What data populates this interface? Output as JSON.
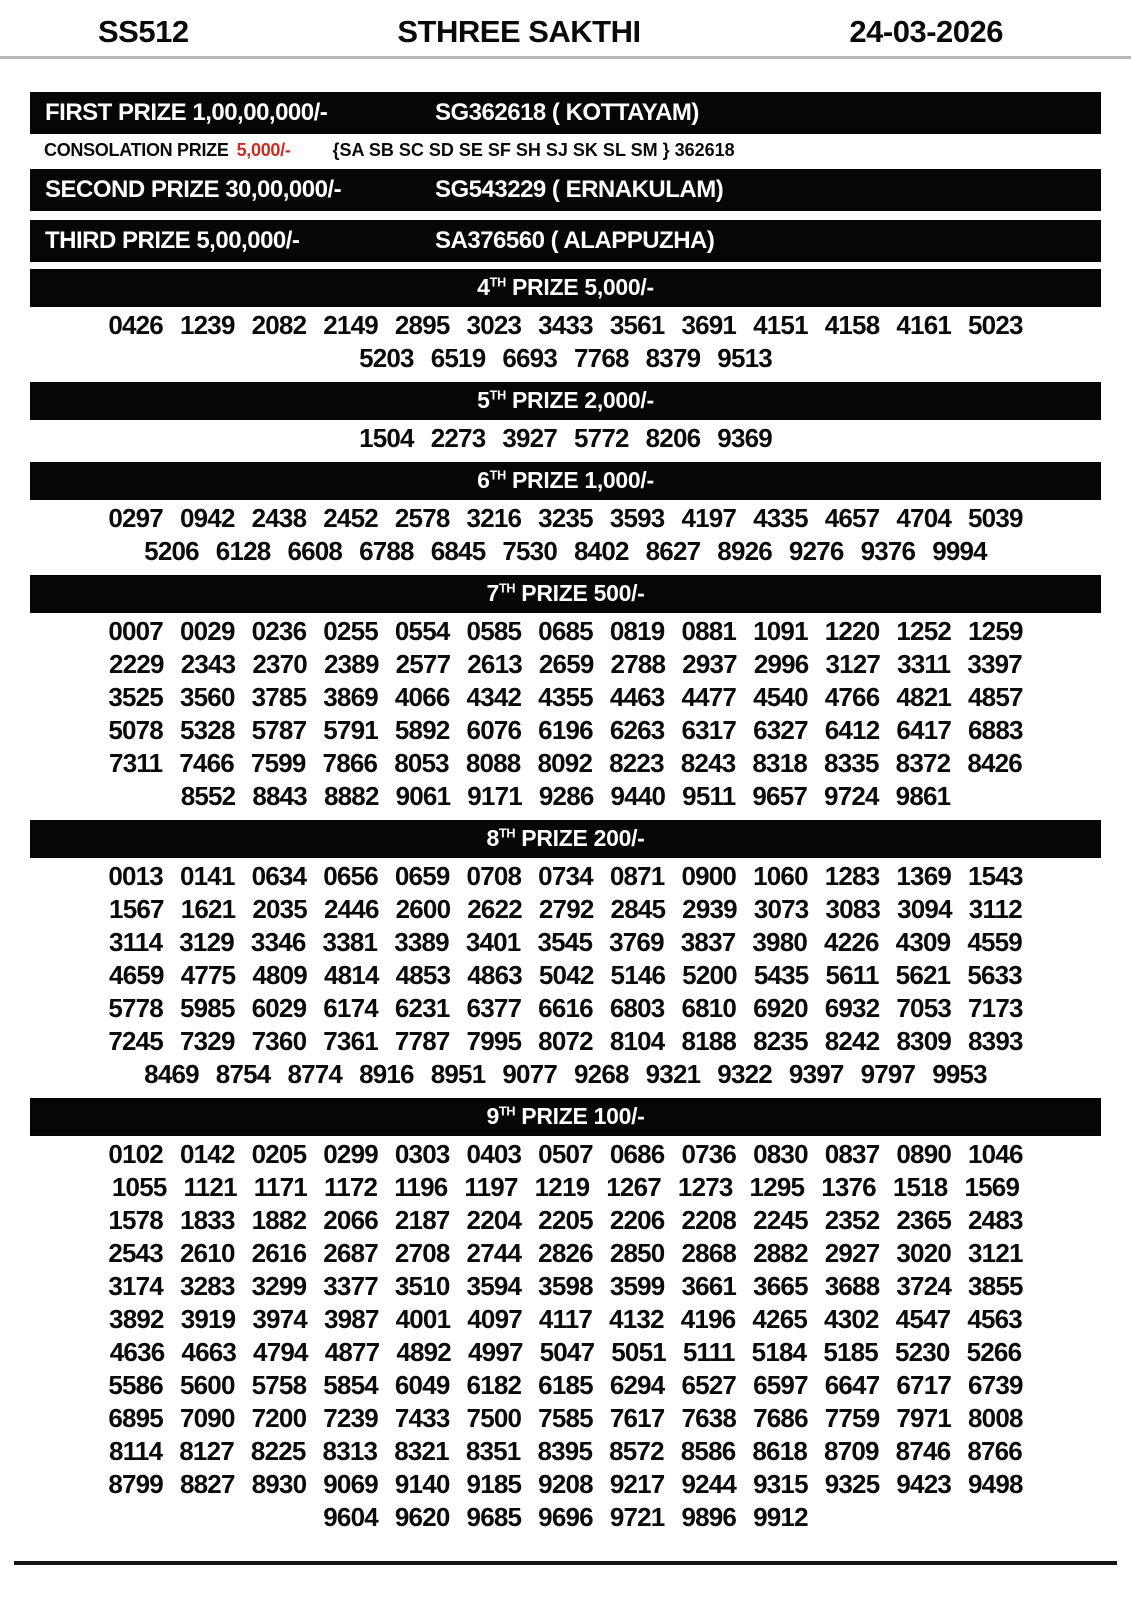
{
  "header": {
    "draw_code": "SS512",
    "lottery_name": "STHREE SAKTHI",
    "draw_date": "24-03-2026"
  },
  "top_prizes": {
    "first": {
      "label": "FIRST PRIZE 1,00,00,000/-",
      "winner": "SG362618 ( KOTTAYAM)"
    },
    "consolation": {
      "label": "CONSOLATION PRIZE",
      "amount": "5,000/-",
      "series": "{SA SB SC SD SE SF SH SJ SK SL SM } 362618"
    },
    "second": {
      "label": "SECOND PRIZE 30,00,000/-",
      "winner": "SG543229 ( ERNAKULAM)"
    },
    "third": {
      "label": "THIRD PRIZE 5,00,000/-",
      "winner": "SA376560 ( ALAPPUZHA)"
    }
  },
  "lower_prizes": [
    {
      "ordinal": "4",
      "ordinal_suffix": "TH",
      "title_rest": "PRIZE 5,000/-",
      "numbers": [
        "0426",
        "1239",
        "2082",
        "2149",
        "2895",
        "3023",
        "3433",
        "3561",
        "3691",
        "4151",
        "4158",
        "4161",
        "5023",
        "5203",
        "6519",
        "6693",
        "7768",
        "8379",
        "9513"
      ]
    },
    {
      "ordinal": "5",
      "ordinal_suffix": "TH",
      "title_rest": "PRIZE 2,000/-",
      "numbers": [
        "1504",
        "2273",
        "3927",
        "5772",
        "8206",
        "9369"
      ]
    },
    {
      "ordinal": "6",
      "ordinal_suffix": "TH",
      "title_rest": "PRIZE 1,000/-",
      "numbers": [
        "0297",
        "0942",
        "2438",
        "2452",
        "2578",
        "3216",
        "3235",
        "3593",
        "4197",
        "4335",
        "4657",
        "4704",
        "5039",
        "5206",
        "6128",
        "6608",
        "6788",
        "6845",
        "7530",
        "8402",
        "8627",
        "8926",
        "9276",
        "9376",
        "9994"
      ]
    },
    {
      "ordinal": "7",
      "ordinal_suffix": "TH",
      "title_rest": "PRIZE 500/-",
      "numbers": [
        "0007",
        "0029",
        "0236",
        "0255",
        "0554",
        "0585",
        "0685",
        "0819",
        "0881",
        "1091",
        "1220",
        "1252",
        "1259",
        "2229",
        "2343",
        "2370",
        "2389",
        "2577",
        "2613",
        "2659",
        "2788",
        "2937",
        "2996",
        "3127",
        "3311",
        "3397",
        "3525",
        "3560",
        "3785",
        "3869",
        "4066",
        "4342",
        "4355",
        "4463",
        "4477",
        "4540",
        "4766",
        "4821",
        "4857",
        "5078",
        "5328",
        "5787",
        "5791",
        "5892",
        "6076",
        "6196",
        "6263",
        "6317",
        "6327",
        "6412",
        "6417",
        "6883",
        "7311",
        "7466",
        "7599",
        "7866",
        "8053",
        "8088",
        "8092",
        "8223",
        "8243",
        "8318",
        "8335",
        "8372",
        "8426",
        "8552",
        "8843",
        "8882",
        "9061",
        "9171",
        "9286",
        "9440",
        "9511",
        "9657",
        "9724",
        "9861"
      ]
    },
    {
      "ordinal": "8",
      "ordinal_suffix": "TH",
      "title_rest": "PRIZE 200/-",
      "numbers": [
        "0013",
        "0141",
        "0634",
        "0656",
        "0659",
        "0708",
        "0734",
        "0871",
        "0900",
        "1060",
        "1283",
        "1369",
        "1543",
        "1567",
        "1621",
        "2035",
        "2446",
        "2600",
        "2622",
        "2792",
        "2845",
        "2939",
        "3073",
        "3083",
        "3094",
        "3112",
        "3114",
        "3129",
        "3346",
        "3381",
        "3389",
        "3401",
        "3545",
        "3769",
        "3837",
        "3980",
        "4226",
        "4309",
        "4559",
        "4659",
        "4775",
        "4809",
        "4814",
        "4853",
        "4863",
        "5042",
        "5146",
        "5200",
        "5435",
        "5611",
        "5621",
        "5633",
        "5778",
        "5985",
        "6029",
        "6174",
        "6231",
        "6377",
        "6616",
        "6803",
        "6810",
        "6920",
        "6932",
        "7053",
        "7173",
        "7245",
        "7329",
        "7360",
        "7361",
        "7787",
        "7995",
        "8072",
        "8104",
        "8188",
        "8235",
        "8242",
        "8309",
        "8393",
        "8469",
        "8754",
        "8774",
        "8916",
        "8951",
        "9077",
        "9268",
        "9321",
        "9322",
        "9397",
        "9797",
        "9953"
      ]
    },
    {
      "ordinal": "9",
      "ordinal_suffix": "TH",
      "title_rest": "PRIZE 100/-",
      "numbers": [
        "0102",
        "0142",
        "0205",
        "0299",
        "0303",
        "0403",
        "0507",
        "0686",
        "0736",
        "0830",
        "0837",
        "0890",
        "1046",
        "1055",
        "1121",
        "1171",
        "1172",
        "1196",
        "1197",
        "1219",
        "1267",
        "1273",
        "1295",
        "1376",
        "1518",
        "1569",
        "1578",
        "1833",
        "1882",
        "2066",
        "2187",
        "2204",
        "2205",
        "2206",
        "2208",
        "2245",
        "2352",
        "2365",
        "2483",
        "2543",
        "2610",
        "2616",
        "2687",
        "2708",
        "2744",
        "2826",
        "2850",
        "2868",
        "2882",
        "2927",
        "3020",
        "3121",
        "3174",
        "3283",
        "3299",
        "3377",
        "3510",
        "3594",
        "3598",
        "3599",
        "3661",
        "3665",
        "3688",
        "3724",
        "3855",
        "3892",
        "3919",
        "3974",
        "3987",
        "4001",
        "4097",
        "4117",
        "4132",
        "4196",
        "4265",
        "4302",
        "4547",
        "4563",
        "4636",
        "4663",
        "4794",
        "4877",
        "4892",
        "4997",
        "5047",
        "5051",
        "5111",
        "5184",
        "5185",
        "5230",
        "5266",
        "5586",
        "5600",
        "5758",
        "5854",
        "6049",
        "6182",
        "6185",
        "6294",
        "6527",
        "6597",
        "6647",
        "6717",
        "6739",
        "6895",
        "7090",
        "7200",
        "7239",
        "7433",
        "7500",
        "7585",
        "7617",
        "7638",
        "7686",
        "7759",
        "7971",
        "8008",
        "8114",
        "8127",
        "8225",
        "8313",
        "8321",
        "8351",
        "8395",
        "8572",
        "8586",
        "8618",
        "8709",
        "8746",
        "8766",
        "8799",
        "8827",
        "8930",
        "9069",
        "9140",
        "9185",
        "9208",
        "9217",
        "9244",
        "9315",
        "9325",
        "9423",
        "9498",
        "9604",
        "9620",
        "9685",
        "9696",
        "9721",
        "9896",
        "9912"
      ]
    }
  ],
  "colors": {
    "banner_bg": "#060606",
    "banner_text": "#ffffff",
    "accent_red": "#d02a22",
    "rule_gray": "#b7b7b7"
  }
}
